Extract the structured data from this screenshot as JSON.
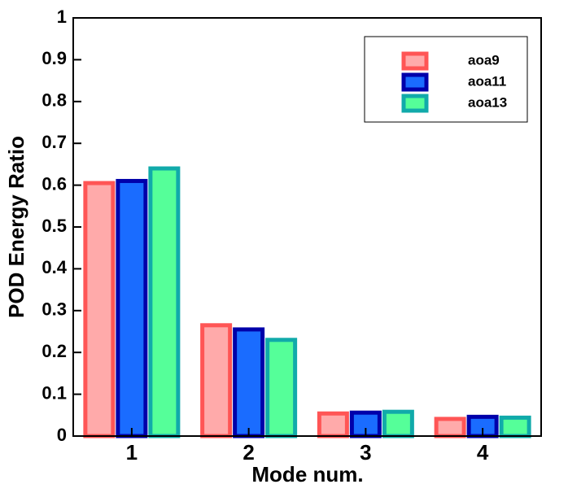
{
  "chart_data": {
    "type": "bar",
    "x_label": "Mode num.",
    "y_label": "POD Energy Ratio",
    "categories": [
      "1",
      "2",
      "3",
      "4"
    ],
    "series": [
      {
        "name": "aoa9",
        "color": "#ffaaaa",
        "edge_color": "#ff5555",
        "values": [
          0.605,
          0.265,
          0.054,
          0.041
        ]
      },
      {
        "name": "aoa11",
        "color": "#1a6cff",
        "edge_color": "#0000aa",
        "values": [
          0.61,
          0.255,
          0.056,
          0.046
        ]
      },
      {
        "name": "aoa13",
        "color": "#55ff99",
        "edge_color": "#11aaaa",
        "values": [
          0.64,
          0.23,
          0.058,
          0.044
        ]
      }
    ],
    "ylim": [
      0,
      1
    ],
    "yticks": [
      0,
      0.1,
      0.2,
      0.3,
      0.4,
      0.5,
      0.6,
      0.7,
      0.8,
      0.9,
      1
    ],
    "grid": false,
    "legend": "upper right"
  }
}
